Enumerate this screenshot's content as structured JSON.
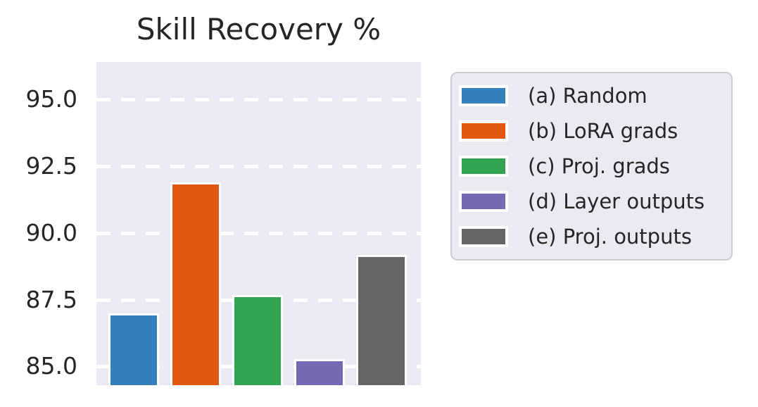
{
  "title": "Skill Recovery %",
  "chart_data": {
    "type": "bar",
    "title": "Skill Recovery %",
    "categories": [
      "(a) Random",
      "(b) LoRA grads",
      "(c) Proj. grads",
      "(d) Layer outputs",
      "(e) Proj. outputs"
    ],
    "values": [
      86.9,
      91.8,
      87.6,
      85.2,
      89.1
    ],
    "bar_colors": [
      "#3380bd",
      "#e2580f",
      "#32a452",
      "#7569b3",
      "#656565"
    ],
    "xlabel": "",
    "ylabel": "",
    "ylim": [
      84.3,
      96.4
    ],
    "y_ticks": [
      95.0,
      92.5,
      90.0,
      87.5,
      85.0
    ],
    "y_tick_labels": [
      "95.0",
      "92.5",
      "90.0",
      "87.5",
      "85.0"
    ],
    "grid": true,
    "grid_style": "dashed-white-horizontal",
    "plot_background": "#eaeaf2",
    "grid_color": "#ffffff",
    "text_color": "#262626",
    "legend_position": "outside-upper-right"
  },
  "legend": {
    "items": [
      {
        "label": "(a) Random",
        "color": "#3380bd"
      },
      {
        "label": "(b) LoRA grads",
        "color": "#e2580f"
      },
      {
        "label": "(c) Proj. grads",
        "color": "#32a452"
      },
      {
        "label": "(d) Layer outputs",
        "color": "#7569b3"
      },
      {
        "label": "(e) Proj. outputs",
        "color": "#656565"
      }
    ]
  }
}
